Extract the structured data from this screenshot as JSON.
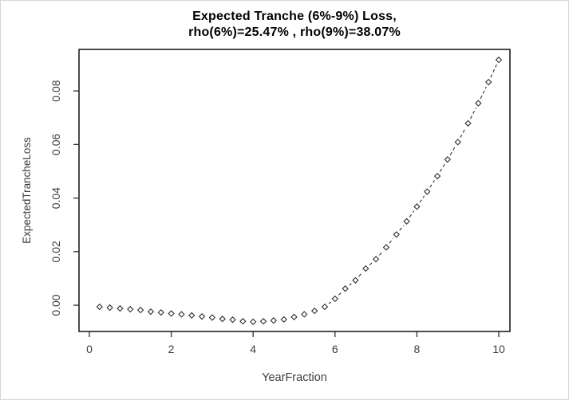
{
  "figure": {
    "title_line1": "Expected Tranche (6%-9%) Loss,",
    "title_line2": "rho(6%)=25.47% , rho(9%)=38.07%"
  },
  "colors": {
    "background": "#ffffff",
    "title_text": "#000000",
    "axis_text": "#3d3d3d",
    "box_line": "#000000",
    "tick_line": "#2e2e2e",
    "series_line": "#2e2e2e",
    "marker_stroke": "#2e2e2e",
    "marker_fill": "#ffffff"
  },
  "chart_data": {
    "type": "scatter",
    "title": "Expected Tranche (6%-9%) Loss, rho(6%)=25.47% , rho(9%)=38.07%",
    "xlabel": "YearFraction",
    "ylabel": "ExpectedTrancheLoss",
    "legend": null,
    "grid": false,
    "marker": "open-diamond",
    "line_style": "dashed",
    "xlim": [
      -0.253,
      10.273
    ],
    "ylim": [
      -0.0098,
      0.0955
    ],
    "x_ticks": [
      0,
      2,
      4,
      6,
      8,
      10
    ],
    "x_tick_labels": [
      "0",
      "2",
      "4",
      "6",
      "8",
      "10"
    ],
    "y_ticks": [
      0.0,
      0.02,
      0.04,
      0.06,
      0.08
    ],
    "y_tick_labels": [
      "0.00",
      "0.02",
      "0.04",
      "0.06",
      "0.08"
    ],
    "x": [
      0.25,
      0.5,
      0.75,
      1.0,
      1.25,
      1.5,
      1.75,
      2.0,
      2.25,
      2.5,
      2.75,
      3.0,
      3.25,
      3.5,
      3.75,
      4.0,
      4.25,
      4.5,
      4.75,
      5.0,
      5.25,
      5.5,
      5.75,
      6.0,
      6.25,
      6.5,
      6.75,
      7.0,
      7.25,
      7.5,
      7.75,
      8.0,
      8.25,
      8.5,
      8.75,
      9.0,
      9.25,
      9.5,
      9.75,
      10.0
    ],
    "y": [
      -0.0006,
      -0.0009,
      -0.0012,
      -0.0015,
      -0.0018,
      -0.0024,
      -0.0027,
      -0.0031,
      -0.0034,
      -0.0038,
      -0.0042,
      -0.0046,
      -0.0051,
      -0.0054,
      -0.006,
      -0.0062,
      -0.006,
      -0.0057,
      -0.0053,
      -0.0044,
      -0.0034,
      -0.0021,
      -0.0006,
      0.0024,
      0.0062,
      0.0093,
      0.0137,
      0.0172,
      0.0216,
      0.0264,
      0.0313,
      0.0368,
      0.0424,
      0.0482,
      0.0544,
      0.0609,
      0.0679,
      0.0754,
      0.0833,
      0.0916
    ]
  }
}
